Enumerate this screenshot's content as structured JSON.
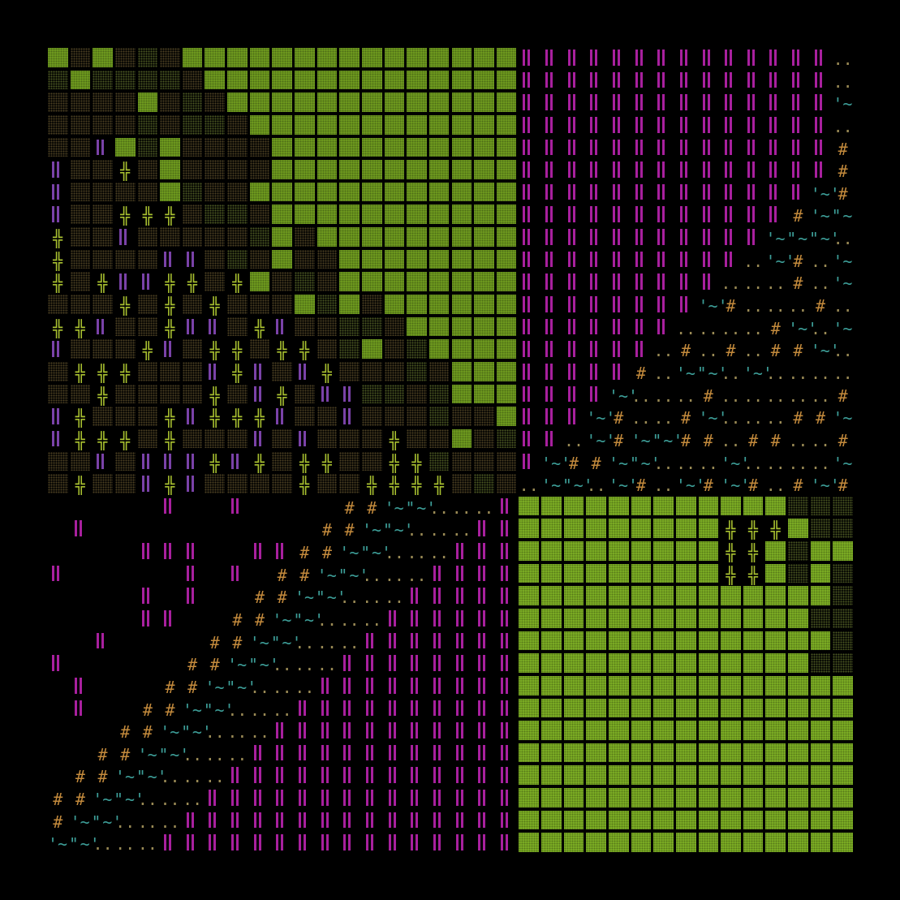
{
  "canvas": {
    "background": "#000000"
  },
  "grid": {
    "columns": 36,
    "rows": 36
  },
  "palette": {
    "green": "#6f9b1f",
    "green_bright": "#7cae24",
    "olive": "#3e4a1d",
    "olive_mid": "#4a5622",
    "brown": "#4b3f22",
    "dark": "#24301a",
    "magenta": "#a8209e",
    "purple": "#7a42a8",
    "lime": "#a8c030",
    "orange": "#c38a3c",
    "teal": "#3d9f99",
    "tan": "#9a8a55"
  },
  "glyphs": {
    "hash": "#",
    "cross": "╬",
    "dots": "..",
    "wave": "'~'",
    "pipe": "||"
  }
}
